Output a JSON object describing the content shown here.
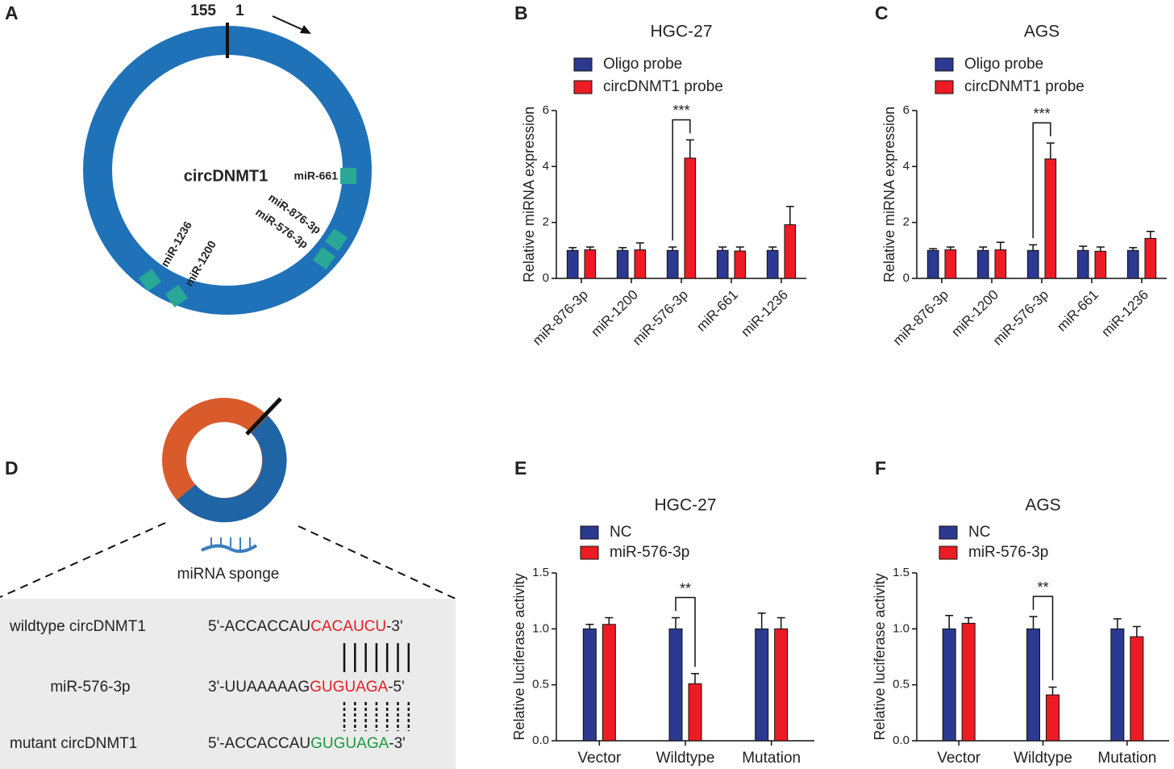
{
  "diagram_a": {
    "label": "A",
    "start_label": "155",
    "end_label": "1",
    "center_label": "circDNMT1",
    "sites": [
      "miR-661",
      "miR-876-3p",
      "miR-576-3p",
      "miR-1236",
      "miR-1200"
    ]
  },
  "diagram_d": {
    "label": "D",
    "caption": "miRNA sponge",
    "rows": [
      {
        "name": "wildtype circDNMT1",
        "prefix": "5'-ACCACCAU",
        "site": "CACAUCU",
        "suffix": "-3'"
      },
      {
        "name": "miR-576-3p",
        "prefix": "3'-UUAAAAAG",
        "site": "GUGUAGA",
        "suffix": "-5'"
      },
      {
        "name": "mutant circDNMT1",
        "prefix": "5'-ACCACCAU",
        "site": "GUGUAGA",
        "suffix": "-3'"
      }
    ]
  },
  "chart_data": [
    {
      "type": "bar",
      "label": "B",
      "title": "HGC-27",
      "y_label": "Relative miRNA expression",
      "categories": [
        "miR-876-3p",
        "miR-1200",
        "miR-576-3p",
        "miR-661",
        "miR-1236"
      ],
      "series": [
        {
          "name": "Oligo probe",
          "color": "#2b3990",
          "values": [
            1,
            1,
            1,
            1,
            1
          ],
          "errors": [
            0.1,
            0.1,
            0.12,
            0.12,
            0.12
          ]
        },
        {
          "name": "circDNMT1 probe",
          "color": "#ed1c24",
          "values": [
            1.02,
            1.02,
            4.3,
            0.98,
            1.92
          ],
          "errors": [
            0.1,
            0.25,
            0.65,
            0.14,
            0.65
          ]
        }
      ],
      "ylim": [
        0,
        6
      ],
      "yticks": [
        0,
        2,
        4,
        6
      ],
      "annotations": [
        {
          "text": "***",
          "category": "miR-576-3p"
        }
      ]
    },
    {
      "type": "bar",
      "label": "C",
      "title": "AGS",
      "y_label": "Relative miRNA expression",
      "categories": [
        "miR-876-3p",
        "miR-1200",
        "miR-576-3p",
        "miR-661",
        "miR-1236"
      ],
      "series": [
        {
          "name": "Oligo probe",
          "color": "#2b3990",
          "values": [
            1,
            1,
            1,
            1,
            1
          ],
          "errors": [
            0.06,
            0.12,
            0.2,
            0.15,
            0.1
          ]
        },
        {
          "name": "circDNMT1 probe",
          "color": "#ed1c24",
          "values": [
            1.02,
            1.02,
            4.27,
            0.97,
            1.43
          ],
          "errors": [
            0.1,
            0.27,
            0.57,
            0.15,
            0.25
          ]
        }
      ],
      "ylim": [
        0,
        6
      ],
      "yticks": [
        0,
        2,
        4,
        6
      ],
      "annotations": [
        {
          "text": "***",
          "category": "miR-576-3p"
        }
      ]
    },
    {
      "type": "bar",
      "label": "E",
      "title": "HGC-27",
      "y_label": "Relative luciferase activity",
      "categories": [
        "Vector",
        "Wildtype",
        "Mutation"
      ],
      "series": [
        {
          "name": "NC",
          "color": "#2b3990",
          "values": [
            1,
            1,
            1
          ],
          "errors": [
            0.04,
            0.1,
            0.14
          ]
        },
        {
          "name": "miR-576-3p",
          "color": "#ed1c24",
          "values": [
            1.04,
            0.51,
            1.0
          ],
          "errors": [
            0.06,
            0.09,
            0.1
          ]
        }
      ],
      "ylim": [
        0,
        1.5
      ],
      "yticks": [
        {
          "value": 0,
          "label": "0.0"
        },
        0.5,
        {
          "value": 1,
          "label": "1.0"
        },
        1.5
      ],
      "annotations": [
        {
          "text": "**",
          "category": "Wildtype"
        }
      ]
    },
    {
      "type": "bar",
      "label": "F",
      "title": "AGS",
      "y_label": "Relative luciferase activity",
      "categories": [
        "Vector",
        "Wildtype",
        "Mutation"
      ],
      "series": [
        {
          "name": "NC",
          "color": "#2b3990",
          "values": [
            1,
            1,
            1
          ],
          "errors": [
            0.12,
            0.11,
            0.09
          ]
        },
        {
          "name": "miR-576-3p",
          "color": "#ed1c24",
          "values": [
            1.05,
            0.41,
            0.93
          ],
          "errors": [
            0.05,
            0.07,
            0.09
          ]
        }
      ],
      "ylim": [
        0,
        1.5
      ],
      "yticks": [
        {
          "value": 0,
          "label": "0.0"
        },
        0.5,
        {
          "value": 1,
          "label": "1.0"
        },
        1.5
      ],
      "annotations": [
        {
          "text": "**",
          "category": "Wildtype"
        }
      ]
    }
  ]
}
